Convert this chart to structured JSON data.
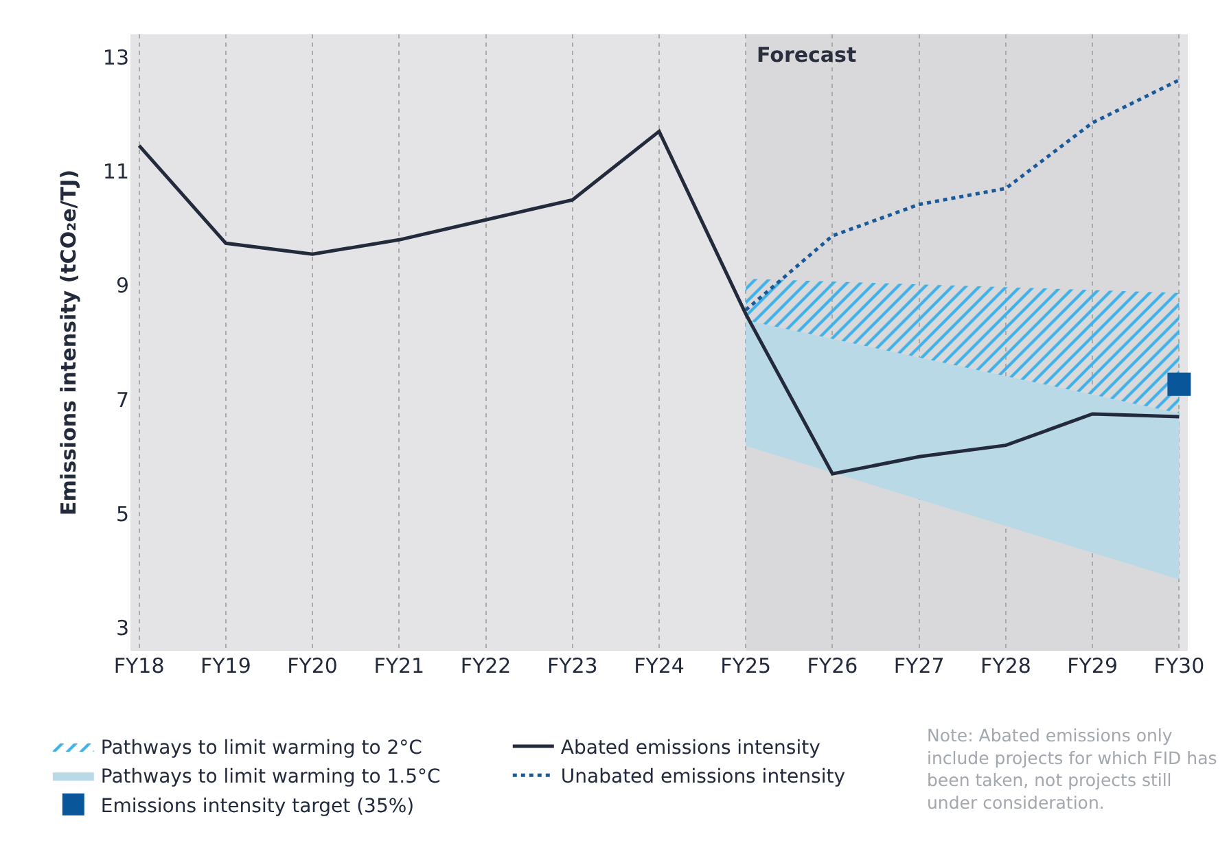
{
  "chart_data": {
    "type": "line",
    "ylabel": "Emissions intensity (tCO₂e/TJ)",
    "categories": [
      "FY18",
      "FY19",
      "FY20",
      "FY21",
      "FY22",
      "FY23",
      "FY24",
      "FY25",
      "FY26",
      "FY27",
      "FY28",
      "FY29",
      "FY30"
    ],
    "ylim": [
      2.6,
      13.4
    ],
    "yticks": [
      3,
      5,
      7,
      9,
      11,
      13
    ],
    "grid": "x",
    "legend": "bottom left",
    "series": [
      {
        "name": "Pathways to limit warming to 2°C",
        "type": "area",
        "color": "#3db1e8",
        "values": [
          null,
          null,
          null,
          null,
          null,
          null,
          null,
          null,
          null,
          null,
          null,
          null,
          null
        ],
        "lower": [
          null,
          null,
          null,
          null,
          null,
          null,
          null,
          7.27,
          null,
          null,
          null,
          null,
          5.8
        ],
        "upper": [
          null,
          null,
          null,
          null,
          null,
          null,
          null,
          9.12,
          null,
          null,
          null,
          null,
          8.87
        ]
      },
      {
        "name": "Abated emissions intensity",
        "type": "line",
        "line_style": "solid",
        "color": "#232a3b",
        "values": [
          11.45,
          9.74,
          9.55,
          9.8,
          10.15,
          10.5,
          11.7,
          8.5,
          5.7,
          6.0,
          6.2,
          6.75,
          6.7
        ]
      },
      {
        "name": "Pathways to limit warming to 1.5°C",
        "type": "area",
        "color": "#bad9e7",
        "values": [
          null,
          null,
          null,
          null,
          null,
          null,
          null,
          null,
          null,
          null,
          null,
          null,
          null
        ],
        "lower": [
          null,
          null,
          null,
          null,
          null,
          null,
          null,
          6.19,
          null,
          null,
          null,
          null,
          3.85
        ],
        "upper": [
          null,
          null,
          null,
          null,
          null,
          null,
          null,
          8.39,
          null,
          null,
          null,
          null,
          6.76
        ]
      },
      {
        "name": "Unabated emissions intensity",
        "type": "line",
        "line_style": "dotted",
        "color": "#1a5a9a",
        "values": [
          null,
          null,
          null,
          null,
          null,
          null,
          null,
          8.57,
          9.87,
          10.42,
          10.7,
          11.85,
          12.6
        ]
      },
      {
        "name": "Emissions intensity target (35%)",
        "type": "scatter",
        "marker": "square",
        "color": "#0a569b",
        "values": [
          null,
          null,
          null,
          null,
          null,
          null,
          null,
          null,
          null,
          null,
          null,
          null,
          7.27
        ]
      }
    ],
    "bands": [
      {
        "axis": "x",
        "from": "FY25",
        "to": "FY30",
        "label": "Forecast",
        "color": "#d9d9db"
      }
    ],
    "annotations": [
      "Note: Abated emissions only include projects for which FID has been taken, not projects still under consideration."
    ]
  }
}
